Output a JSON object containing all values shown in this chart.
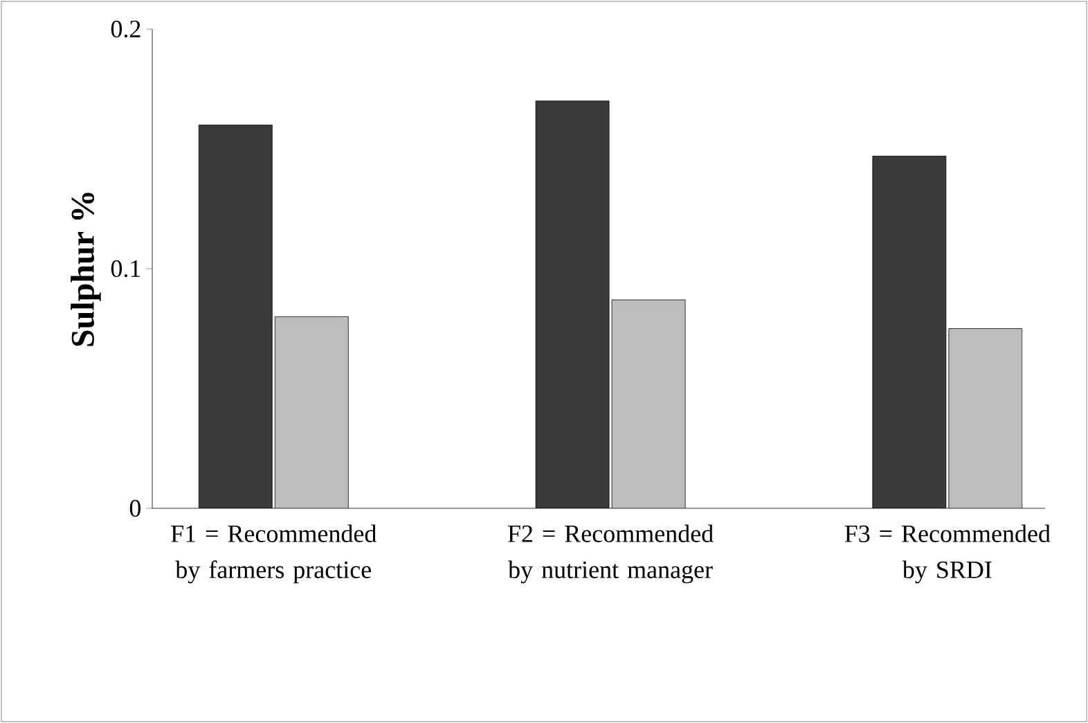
{
  "chart_data": {
    "type": "bar",
    "ylabel": "Sulphur %",
    "categories": [
      "F1 = Recommended by farmers practice",
      "F2 = Recommended by nutrient manager",
      "F3 = Recommended by SRDI"
    ],
    "series": [
      {
        "color": "#3a3a3a",
        "values": [
          0.16,
          0.17,
          0.147
        ]
      },
      {
        "color": "#bdbdbd",
        "values": [
          0.08,
          0.087,
          0.075
        ]
      }
    ],
    "ylim": [
      0,
      0.2
    ],
    "yticks": [
      0,
      0.1,
      0.2
    ],
    "grid": false
  }
}
